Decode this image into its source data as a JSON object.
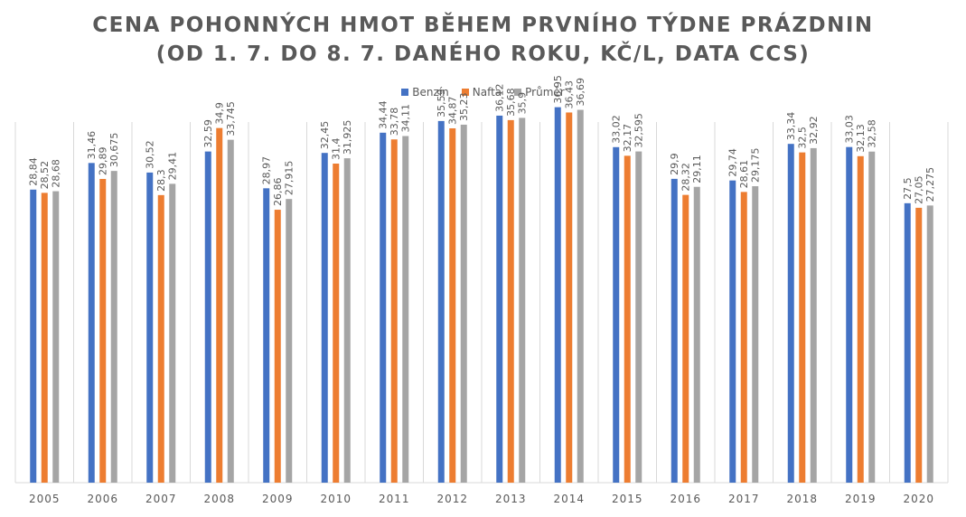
{
  "chart_data": {
    "type": "bar",
    "title_line1": "Cena pohonných hmot během prvního týdne prázdnin",
    "title_line2": "(od 1. 7. do 8. 7. daného roku, Kč/l, data CCS)",
    "categories": [
      "2005",
      "2006",
      "2007",
      "2008",
      "2009",
      "2010",
      "2011",
      "2012",
      "2013",
      "2014",
      "2015",
      "2016",
      "2017",
      "2018",
      "2019",
      "2020"
    ],
    "series": [
      {
        "name": "Benzín",
        "color": "#4472C4",
        "values": [
          28.84,
          31.46,
          30.52,
          32.59,
          28.97,
          32.45,
          34.44,
          35.59,
          36.12,
          36.95,
          33.02,
          29.9,
          29.74,
          33.34,
          33.03,
          27.5
        ],
        "labels": [
          "28,84",
          "31,46",
          "30,52",
          "32,59",
          "28,97",
          "32,45",
          "34,44",
          "35,59",
          "36,12",
          "36,95",
          "33,02",
          "29,9",
          "29,74",
          "33,34",
          "33,03",
          "27,5"
        ]
      },
      {
        "name": "Nafta",
        "color": "#ED7D31",
        "values": [
          28.52,
          29.89,
          28.3,
          34.9,
          26.86,
          31.4,
          33.78,
          34.87,
          35.68,
          36.43,
          32.17,
          28.32,
          28.61,
          32.5,
          32.13,
          27.05
        ],
        "labels": [
          "28,52",
          "29,89",
          "28,3",
          "34,9",
          "26,86",
          "31,4",
          "33,78",
          "34,87",
          "35,68",
          "36,43",
          "32,17",
          "28,32",
          "28,61",
          "32,5",
          "32,13",
          "27,05"
        ]
      },
      {
        "name": "Průměr",
        "color": "#A5A5A5",
        "values": [
          28.68,
          30.675,
          29.41,
          33.745,
          27.915,
          31.925,
          34.11,
          35.23,
          35.9,
          36.69,
          32.595,
          29.11,
          29.175,
          32.92,
          32.58,
          27.275
        ],
        "labels": [
          "28,68",
          "30,675",
          "29,41",
          "33,745",
          "27,915",
          "31,925",
          "34,11",
          "35,23",
          "35,9",
          "36,69",
          "32,595",
          "29,11",
          "29,175",
          "32,92",
          "32,58",
          "27,275"
        ]
      }
    ],
    "ylim": [
      0,
      47.5
    ],
    "grid": "vertical category separators",
    "legend_position": "top"
  }
}
